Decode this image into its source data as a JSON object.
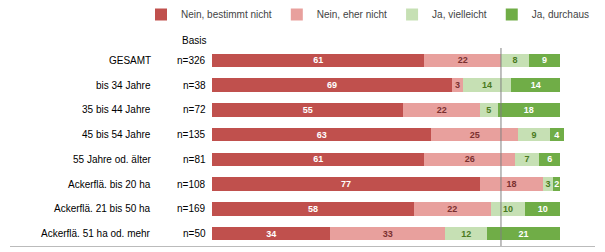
{
  "chart_data": {
    "type": "bar",
    "orientation": "horizontal",
    "stacked": true,
    "data_labels": true,
    "tick_labels": false,
    "legend": "upper right",
    "grid": false,
    "categories": [
      "GESAMT",
      "bis 34 Jahre",
      "35 bis 44 Jahre",
      "45 bis 54 Jahre",
      "55 Jahre od. älter",
      "Ackerflä. bis 20 ha",
      "Ackerflä. 21 bis 50 ha",
      "Ackerflä. 51 ha od. mehr"
    ],
    "series": [
      {
        "name": "Nein, bestimmt nicht",
        "color": "#c0504d",
        "values": [
          61,
          69,
          55,
          63,
          61,
          77,
          58,
          34
        ]
      },
      {
        "name": "Nein, eher nicht",
        "color": "#e8a09d",
        "values": [
          22,
          3,
          22,
          25,
          26,
          18,
          22,
          33
        ]
      },
      {
        "name": "Ja, vielleicht",
        "color": "#c6e0b4",
        "values": [
          8,
          14,
          5,
          9,
          7,
          3,
          10,
          12
        ]
      },
      {
        "name": "Ja, durchaus",
        "color": "#70ad47",
        "values": [
          9,
          14,
          18,
          4,
          6,
          2,
          10,
          21
        ]
      }
    ],
    "xlim": [
      -58,
      110
    ],
    "reference_line": {
      "x": 83
    },
    "annotations": [
      {
        "text": "Basis"
      },
      {
        "text": "n=326",
        "category": "GESAMT"
      },
      {
        "text": "n=38",
        "category": "bis 34 Jahre"
      },
      {
        "text": "n=72",
        "category": "35 bis 44 Jahre"
      },
      {
        "text": "n=135",
        "category": "45 bis 54 Jahre"
      },
      {
        "text": "n=81",
        "category": "55 Jahre od. älter"
      },
      {
        "text": "n=108",
        "category": "Ackerflä. bis 20 ha"
      },
      {
        "text": "n=169",
        "category": "Ackerflä. 21 bis 50 ha"
      },
      {
        "text": "n=50",
        "category": "Ackerflä. 51 ha od. mehr"
      }
    ]
  }
}
